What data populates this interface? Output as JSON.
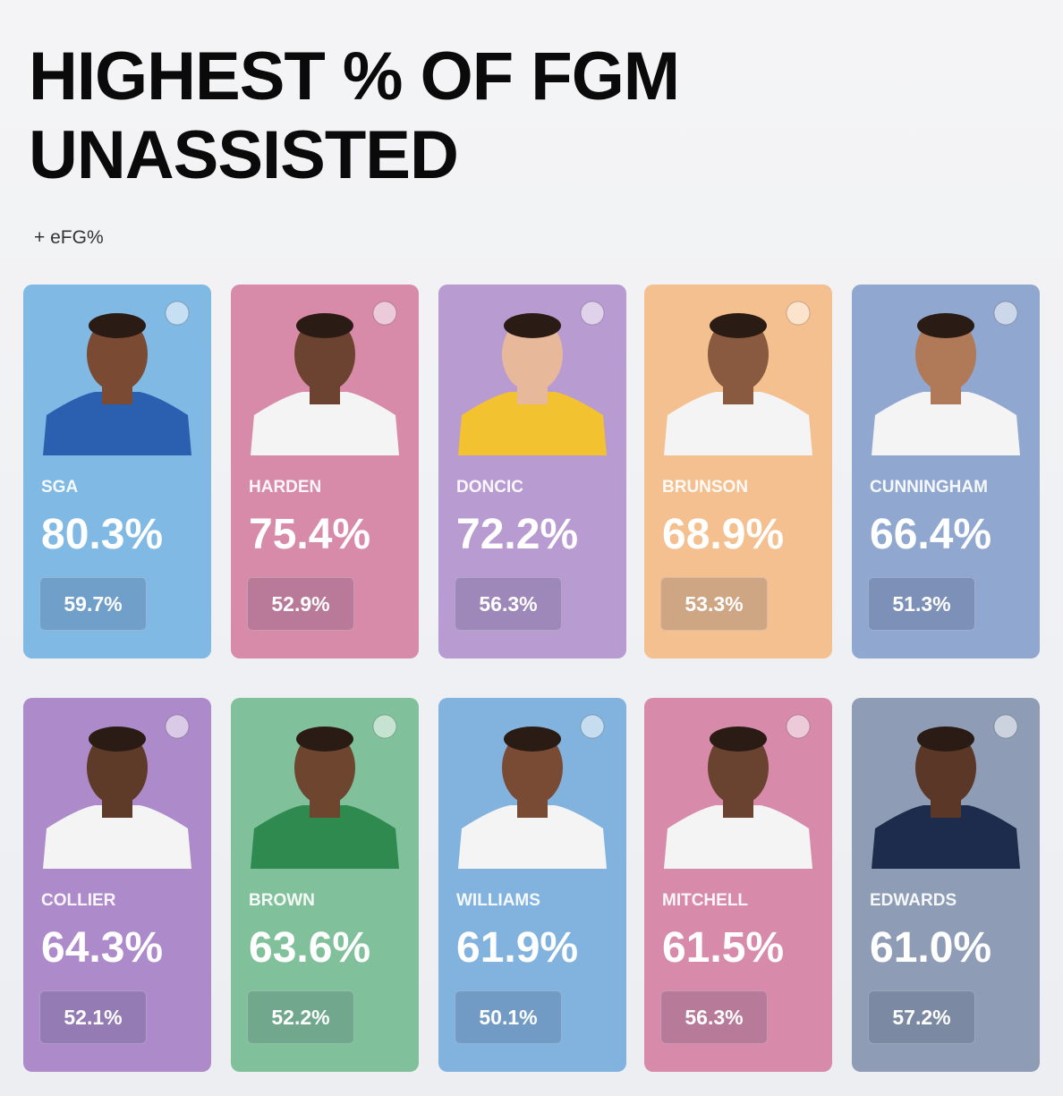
{
  "header": {
    "title": "HIGHEST % OF FGM UNASSISTED",
    "subtitle": "+ eFG%"
  },
  "cards": [
    {
      "name": "SGA",
      "value": "80.3%",
      "efg": "59.7%",
      "color": "#80b9e4"
    },
    {
      "name": "HARDEN",
      "value": "75.4%",
      "efg": "52.9%",
      "color": "#d88aa9"
    },
    {
      "name": "DONCIC",
      "value": "72.2%",
      "efg": "56.3%",
      "color": "#b89bd1"
    },
    {
      "name": "BRUNSON",
      "value": "68.9%",
      "efg": "53.3%",
      "color": "#f5c08f"
    },
    {
      "name": "CUNNINGHAM",
      "value": "66.4%",
      "efg": "51.3%",
      "color": "#90a7d0"
    },
    {
      "name": "COLLIER",
      "value": "64.3%",
      "efg": "52.1%",
      "color": "#ad8bca"
    },
    {
      "name": "BROWN",
      "value": "63.6%",
      "efg": "52.2%",
      "color": "#80c19b"
    },
    {
      "name": "WILLIAMS",
      "value": "61.9%",
      "efg": "50.1%",
      "color": "#82b3de"
    },
    {
      "name": "MITCHELL",
      "value": "61.5%",
      "efg": "56.3%",
      "color": "#d78aa9"
    },
    {
      "name": "EDWARDS",
      "value": "61.0%",
      "efg": "57.2%",
      "color": "#8e9db5"
    }
  ]
}
